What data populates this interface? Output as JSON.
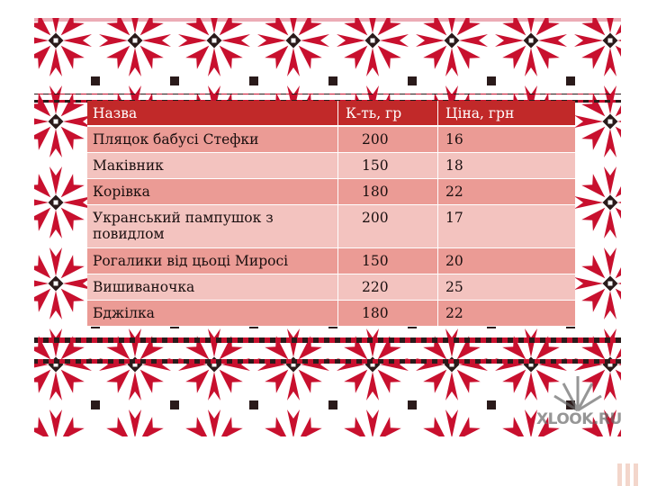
{
  "table": {
    "headers": [
      "Назва",
      "К-ть, гр",
      "Ціна, грн"
    ],
    "rows": [
      {
        "name": "Пляцок бабусі Стефки",
        "qty": "200",
        "price": "16"
      },
      {
        "name": "Маківник",
        "qty": "150",
        "price": "18"
      },
      {
        "name": "Корівка",
        "qty": "180",
        "price": "22"
      },
      {
        "name": "Укранський пампушок з повидлом",
        "qty": "200",
        "price": "17"
      },
      {
        "name": "Рогалики від цьоці  Миросі",
        "qty": "150",
        "price": "20"
      },
      {
        "name": "Вишиваночка",
        "qty": "220",
        "price": "25"
      },
      {
        "name": "Бджілка",
        "qty": "180",
        "price": "22"
      }
    ]
  },
  "watermark": {
    "text": "XLOOK.RU"
  },
  "colors": {
    "embroidery_red": "#c8102e",
    "embroidery_dark": "#2a1a1a",
    "header_bg": "#c12929",
    "row_odd": "#eb9b95",
    "row_even": "#f3c3bf"
  }
}
